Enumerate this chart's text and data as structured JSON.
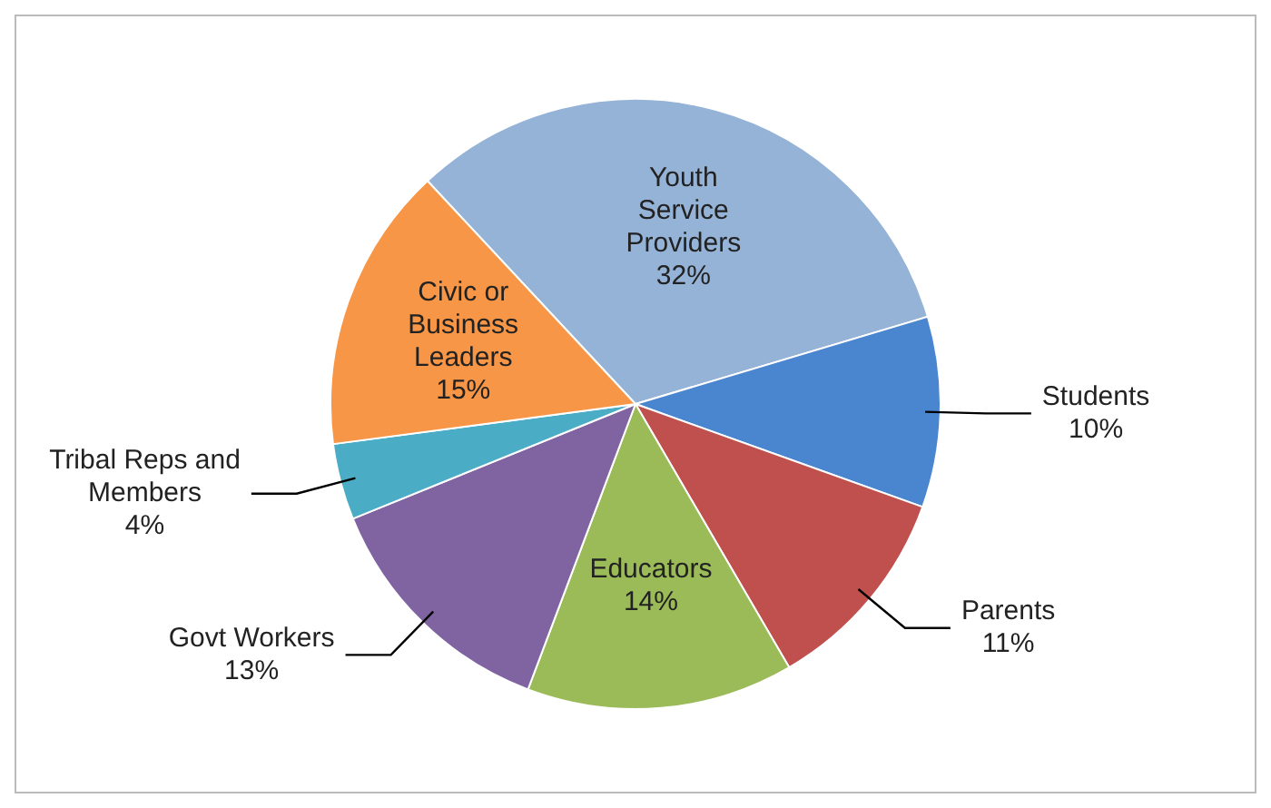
{
  "chart_data": {
    "type": "pie",
    "categories": [
      "Youth Service Providers",
      "Students",
      "Parents",
      "Educators",
      "Govt Workers",
      "Tribal Reps and Members",
      "Civic or Business Leaders"
    ],
    "values": [
      32,
      10,
      11,
      14,
      13,
      4,
      15
    ],
    "value_labels": [
      "32%",
      "10%",
      "11%",
      "14%",
      "13%",
      "4%",
      "15%"
    ],
    "colors": [
      "#95b3d7",
      "#4a86d0",
      "#c0504d",
      "#9bbb59",
      "#8064a2",
      "#4bacc6",
      "#f79646"
    ],
    "legend": false
  }
}
